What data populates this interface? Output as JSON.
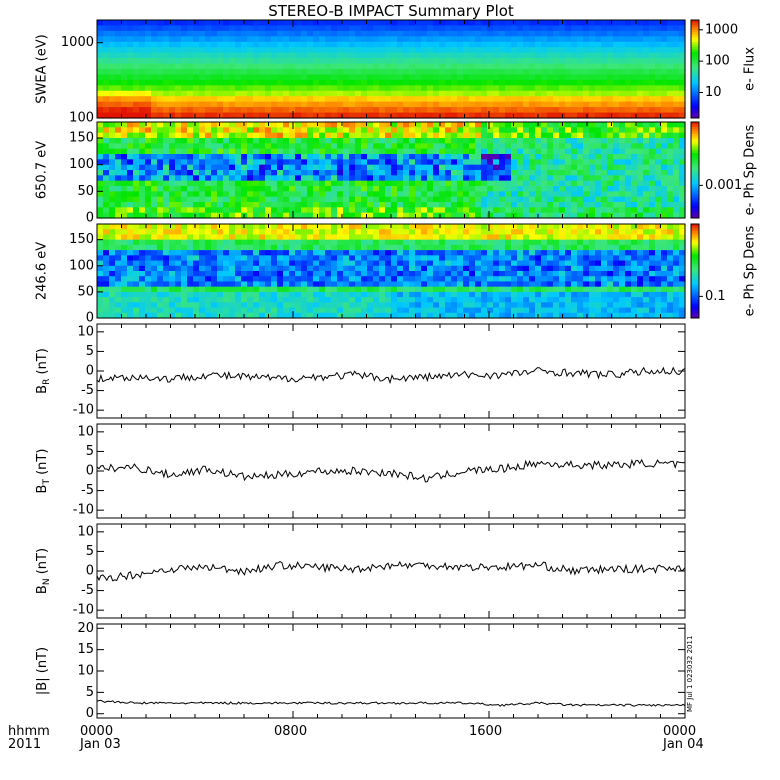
{
  "title": "STEREO-B IMPACT Summary Plot",
  "stamp": "MF Jul 1 023032 2011",
  "x_axis": {
    "label_line1": "hhmm",
    "label_line2": "2011",
    "ticks": [
      {
        "label": "0000",
        "sub": "Jan 03"
      },
      {
        "label": "0800",
        "sub": ""
      },
      {
        "label": "1600",
        "sub": ""
      },
      {
        "label": "0000",
        "sub": "Jan 04"
      }
    ]
  },
  "chart_data": [
    {
      "type": "heatmap",
      "ylabel": "SWEA (eV)",
      "yscale": "log",
      "ylim": [
        100,
        2000
      ],
      "yticks": [
        "1000",
        "100"
      ],
      "colorbar_label": "e- Flux",
      "colorbar_ticks": [
        "1000",
        "100",
        "10"
      ]
    },
    {
      "type": "heatmap",
      "ylabel": "650.7 eV",
      "ylim": [
        0,
        180
      ],
      "yticks": [
        "150",
        "100",
        "50",
        "0"
      ],
      "colorbar_label": "e- Ph Sp Dens",
      "colorbar_ticks": [
        "0.001"
      ]
    },
    {
      "type": "heatmap",
      "ylabel": "246.6 eV",
      "ylim": [
        0,
        180
      ],
      "yticks": [
        "150",
        "100",
        "50",
        "0"
      ],
      "colorbar_label": "e- Ph Sp Dens",
      "colorbar_ticks": [
        "0.1"
      ]
    },
    {
      "type": "line",
      "ylabel": "B",
      "ylabel_sub": "R",
      "ylabel_unit": "(nT)",
      "ylim": [
        -12,
        12
      ],
      "yticks": [
        "10",
        "5",
        "0",
        "-5",
        "-10"
      ],
      "x_hours": [
        0,
        1.5,
        3,
        4.5,
        6,
        7.5,
        9,
        10.5,
        12,
        13.5,
        15,
        16.5,
        18,
        19.5,
        21,
        22.5,
        24
      ],
      "values": [
        -2,
        -1.5,
        -2,
        -1,
        -1.5,
        -2,
        -1.5,
        -1,
        -2,
        -1.5,
        -1,
        -1,
        0,
        -0.5,
        -1,
        0,
        0
      ]
    },
    {
      "type": "line",
      "ylabel": "B",
      "ylabel_sub": "T",
      "ylabel_unit": "(nT)",
      "ylim": [
        -12,
        12
      ],
      "yticks": [
        "10",
        "5",
        "0",
        "-5",
        "-10"
      ],
      "x_hours": [
        0,
        1.5,
        3,
        4.5,
        6,
        7.5,
        9,
        10.5,
        12,
        13.5,
        15,
        16.5,
        18,
        19.5,
        21,
        22.5,
        24
      ],
      "values": [
        0.5,
        1,
        -1,
        0.5,
        -1.5,
        -1,
        0,
        0,
        -0.5,
        -2,
        0,
        0.5,
        2,
        1.5,
        1.5,
        2,
        1.5
      ]
    },
    {
      "type": "line",
      "ylabel": "B",
      "ylabel_sub": "N",
      "ylabel_unit": "(nT)",
      "ylim": [
        -12,
        12
      ],
      "yticks": [
        "10",
        "5",
        "0",
        "-5",
        "-10"
      ],
      "x_hours": [
        0,
        1.5,
        3,
        4.5,
        6,
        7.5,
        9,
        10.5,
        12,
        13.5,
        15,
        16.5,
        18,
        19.5,
        21,
        22.5,
        24
      ],
      "values": [
        -2,
        -1,
        0.5,
        1,
        0,
        1.5,
        1,
        0.5,
        1.5,
        1.5,
        1,
        1,
        1.5,
        0,
        0.5,
        0.5,
        1
      ]
    },
    {
      "type": "line",
      "ylabel": "|B|",
      "ylabel_unit": "(nT)",
      "ylim": [
        -1,
        21
      ],
      "yticks": [
        "20",
        "15",
        "10",
        "5",
        "0"
      ],
      "x_hours": [
        0,
        1.5,
        3,
        4.5,
        6,
        7.5,
        9,
        10.5,
        12,
        13.5,
        15,
        16.5,
        18,
        19.5,
        21,
        22.5,
        24
      ],
      "values": [
        3,
        2.5,
        2.5,
        2.5,
        2.5,
        2.5,
        2.5,
        2.5,
        2.5,
        2.5,
        2.5,
        2,
        2.5,
        2,
        2,
        2,
        2
      ]
    }
  ]
}
